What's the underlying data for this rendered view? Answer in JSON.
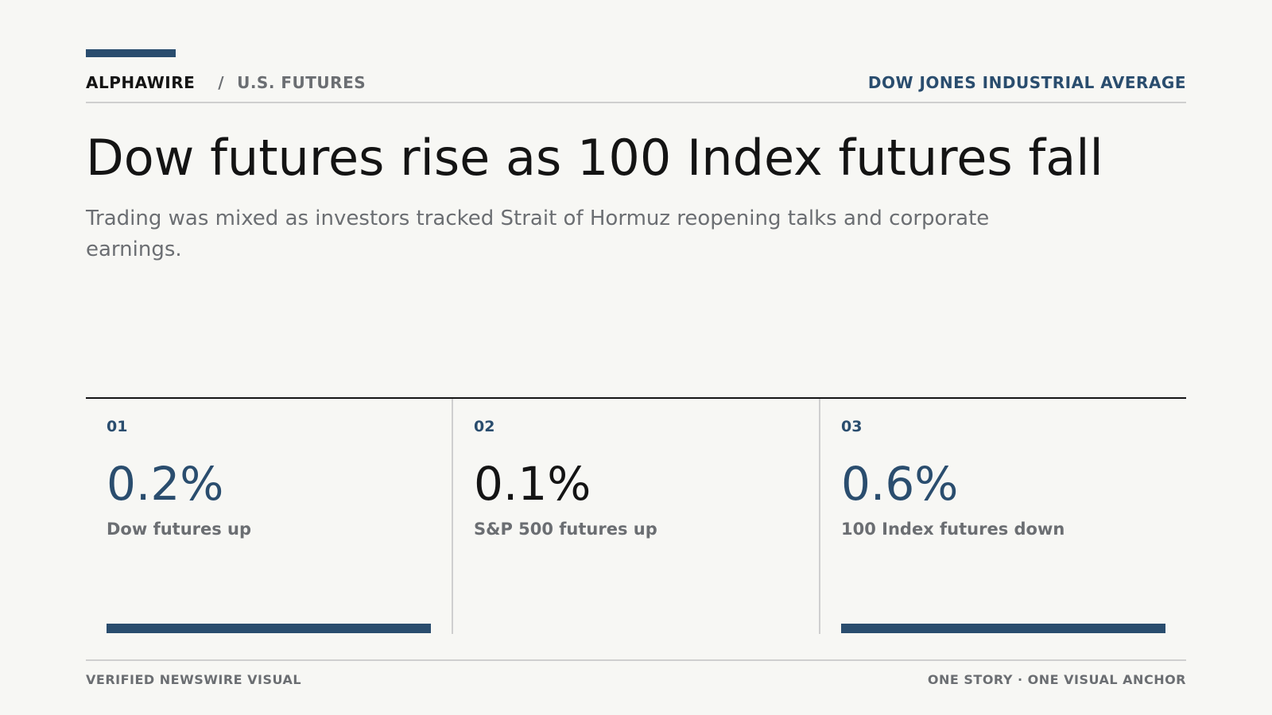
{
  "header": {
    "brand": "ALPHAWIRE",
    "separator": "/",
    "section": "U.S. FUTURES",
    "topic": "DOW JONES INDUSTRIAL AVERAGE"
  },
  "headline": "Dow futures rise as 100 Index futures fall",
  "dek": "Trading was mixed as investors tracked Strait of Hormuz reopening talks and corporate earnings.",
  "stats": [
    {
      "number": "01",
      "value": "0.2%",
      "label": "Dow futures up"
    },
    {
      "number": "02",
      "value": "0.1%",
      "label": "S&P 500 futures up"
    },
    {
      "number": "03",
      "value": "0.6%",
      "label": "100 Index futures down"
    }
  ],
  "footer": {
    "left": "VERIFIED NEWSWIRE VISUAL",
    "right": "ONE STORY · ONE VISUAL ANCHOR"
  },
  "colors": {
    "accent": "#2a4d6e",
    "text": "#141414",
    "muted": "#6b6e72",
    "background": "#f7f7f4",
    "rule": "#cfcfcf"
  }
}
